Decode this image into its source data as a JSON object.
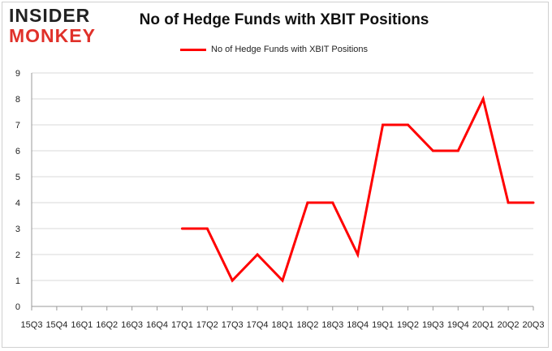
{
  "logo": {
    "top": "INSIDER",
    "bottom": "MONKEY"
  },
  "chart_data": {
    "type": "line",
    "title": "No of Hedge Funds with XBIT Positions",
    "legend_position": "top-center",
    "grid": true,
    "ylim": [
      0,
      9
    ],
    "yticks": [
      0,
      1,
      2,
      3,
      4,
      5,
      6,
      7,
      8,
      9
    ],
    "xticks": [
      "15Q3",
      "15Q4",
      "16Q1",
      "16Q2",
      "16Q3",
      "16Q4",
      "17Q1",
      "17Q2",
      "17Q3",
      "17Q4",
      "18Q1",
      "18Q2",
      "18Q3",
      "18Q4",
      "19Q1",
      "19Q2",
      "19Q3",
      "19Q4",
      "20Q1",
      "20Q2",
      "20Q3"
    ],
    "series": [
      {
        "name": "No of Hedge Funds with XBIT Positions",
        "color": "#ff0000",
        "points": [
          {
            "x": "17Q1",
            "y": 3
          },
          {
            "x": "17Q2",
            "y": 3
          },
          {
            "x": "17Q3",
            "y": 1
          },
          {
            "x": "17Q4",
            "y": 2
          },
          {
            "x": "18Q1",
            "y": 1
          },
          {
            "x": "18Q2",
            "y": 4
          },
          {
            "x": "18Q3",
            "y": 4
          },
          {
            "x": "18Q4",
            "y": 2
          },
          {
            "x": "19Q1",
            "y": 7
          },
          {
            "x": "19Q2",
            "y": 7
          },
          {
            "x": "19Q3",
            "y": 6
          },
          {
            "x": "19Q4",
            "y": 6
          },
          {
            "x": "20Q1",
            "y": 8
          },
          {
            "x": "20Q2",
            "y": 4
          },
          {
            "x": "20Q3",
            "y": 4
          }
        ]
      }
    ]
  }
}
